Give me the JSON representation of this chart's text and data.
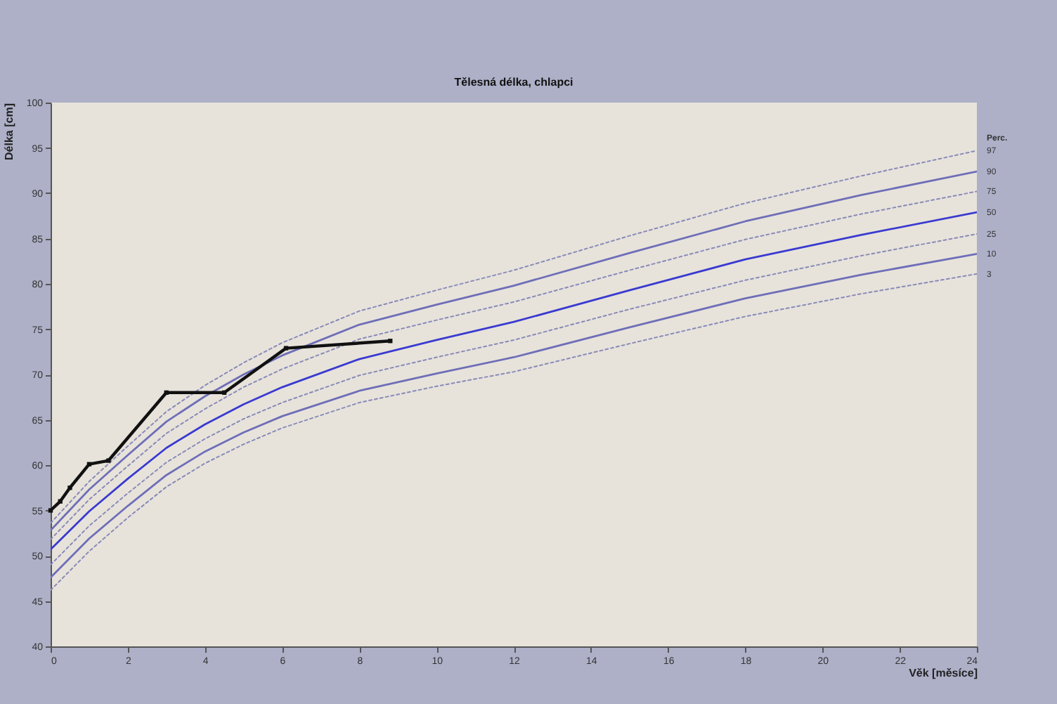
{
  "chart_data": {
    "type": "line",
    "title": "Tělesná délka, chlapci",
    "xlabel": "Věk [měsíce]",
    "ylabel": "Délka [cm]",
    "legend_title": "Perc.",
    "xlim": [
      0,
      24
    ],
    "xticks": [
      0,
      2,
      4,
      6,
      8,
      10,
      12,
      14,
      16,
      18,
      20,
      22,
      24
    ],
    "ylim": [
      40,
      100
    ],
    "yticks": [
      40,
      45,
      50,
      55,
      60,
      65,
      70,
      75,
      80,
      85,
      90,
      95,
      100
    ],
    "grid": false,
    "series": [
      {
        "name": "97",
        "color": "#8a8ab8",
        "line_style": "dotted",
        "marker": "none",
        "x": [
          0,
          1,
          2,
          3,
          4,
          5,
          6,
          8,
          10,
          12,
          15,
          18,
          21,
          24
        ],
        "values": [
          53.6,
          58.2,
          62.1,
          65.9,
          68.8,
          71.3,
          73.5,
          77.0,
          79.3,
          81.5,
          85.3,
          88.9,
          91.9,
          94.7
        ]
      },
      {
        "name": "90",
        "color": "#6e6eb8",
        "line_style": "solid",
        "marker": "none",
        "x": [
          0,
          1,
          2,
          3,
          4,
          5,
          6,
          8,
          10,
          12,
          15,
          18,
          21,
          24
        ],
        "values": [
          52.8,
          57.3,
          61.1,
          64.8,
          67.6,
          70.0,
          72.1,
          75.5,
          77.7,
          79.8,
          83.4,
          86.9,
          89.8,
          92.4
        ]
      },
      {
        "name": "75",
        "color": "#8a8ab8",
        "line_style": "dotted",
        "marker": "none",
        "x": [
          0,
          1,
          2,
          3,
          4,
          5,
          6,
          8,
          10,
          12,
          15,
          18,
          21,
          24
        ],
        "values": [
          51.8,
          56.2,
          59.9,
          63.5,
          66.2,
          68.6,
          70.6,
          73.9,
          76.0,
          78.0,
          81.5,
          84.9,
          87.7,
          90.2
        ]
      },
      {
        "name": "50",
        "color": "#3a3ad0",
        "line_style": "solid",
        "marker": "none",
        "x": [
          0,
          1,
          2,
          3,
          4,
          5,
          6,
          8,
          10,
          12,
          15,
          18,
          21,
          24
        ],
        "values": [
          50.7,
          54.9,
          58.5,
          61.9,
          64.5,
          66.7,
          68.6,
          71.7,
          73.8,
          75.8,
          79.3,
          82.7,
          85.4,
          87.9
        ]
      },
      {
        "name": "25",
        "color": "#8a8ab8",
        "line_style": "dotted",
        "marker": "none",
        "x": [
          0,
          1,
          2,
          3,
          4,
          5,
          6,
          8,
          10,
          12,
          15,
          18,
          21,
          24
        ],
        "values": [
          49.0,
          53.3,
          56.9,
          60.3,
          62.9,
          65.1,
          66.9,
          69.9,
          71.9,
          73.8,
          77.2,
          80.4,
          83.1,
          85.5
        ]
      },
      {
        "name": "10",
        "color": "#6e6eb8",
        "line_style": "solid",
        "marker": "none",
        "x": [
          0,
          1,
          2,
          3,
          4,
          5,
          6,
          8,
          10,
          12,
          15,
          18,
          21,
          24
        ],
        "values": [
          47.6,
          51.9,
          55.5,
          58.9,
          61.5,
          63.6,
          65.4,
          68.2,
          70.1,
          71.9,
          75.2,
          78.4,
          81.0,
          83.3
        ]
      },
      {
        "name": "3",
        "color": "#8a8ab8",
        "line_style": "dotted",
        "marker": "none",
        "x": [
          0,
          1,
          2,
          3,
          4,
          5,
          6,
          8,
          10,
          12,
          15,
          18,
          21,
          24
        ],
        "values": [
          46.2,
          50.5,
          54.2,
          57.6,
          60.2,
          62.3,
          64.1,
          66.9,
          68.7,
          70.3,
          73.4,
          76.4,
          78.9,
          81.1
        ]
      },
      {
        "color": "#111111",
        "line_style": "solid",
        "marker": "square",
        "x": [
          0,
          0.25,
          0.5,
          1,
          1.5,
          3,
          4.5,
          6.1,
          8.8
        ],
        "values": [
          55.0,
          56.0,
          57.5,
          60.1,
          60.5,
          68.0,
          68.0,
          72.9,
          73.7
        ]
      }
    ]
  }
}
